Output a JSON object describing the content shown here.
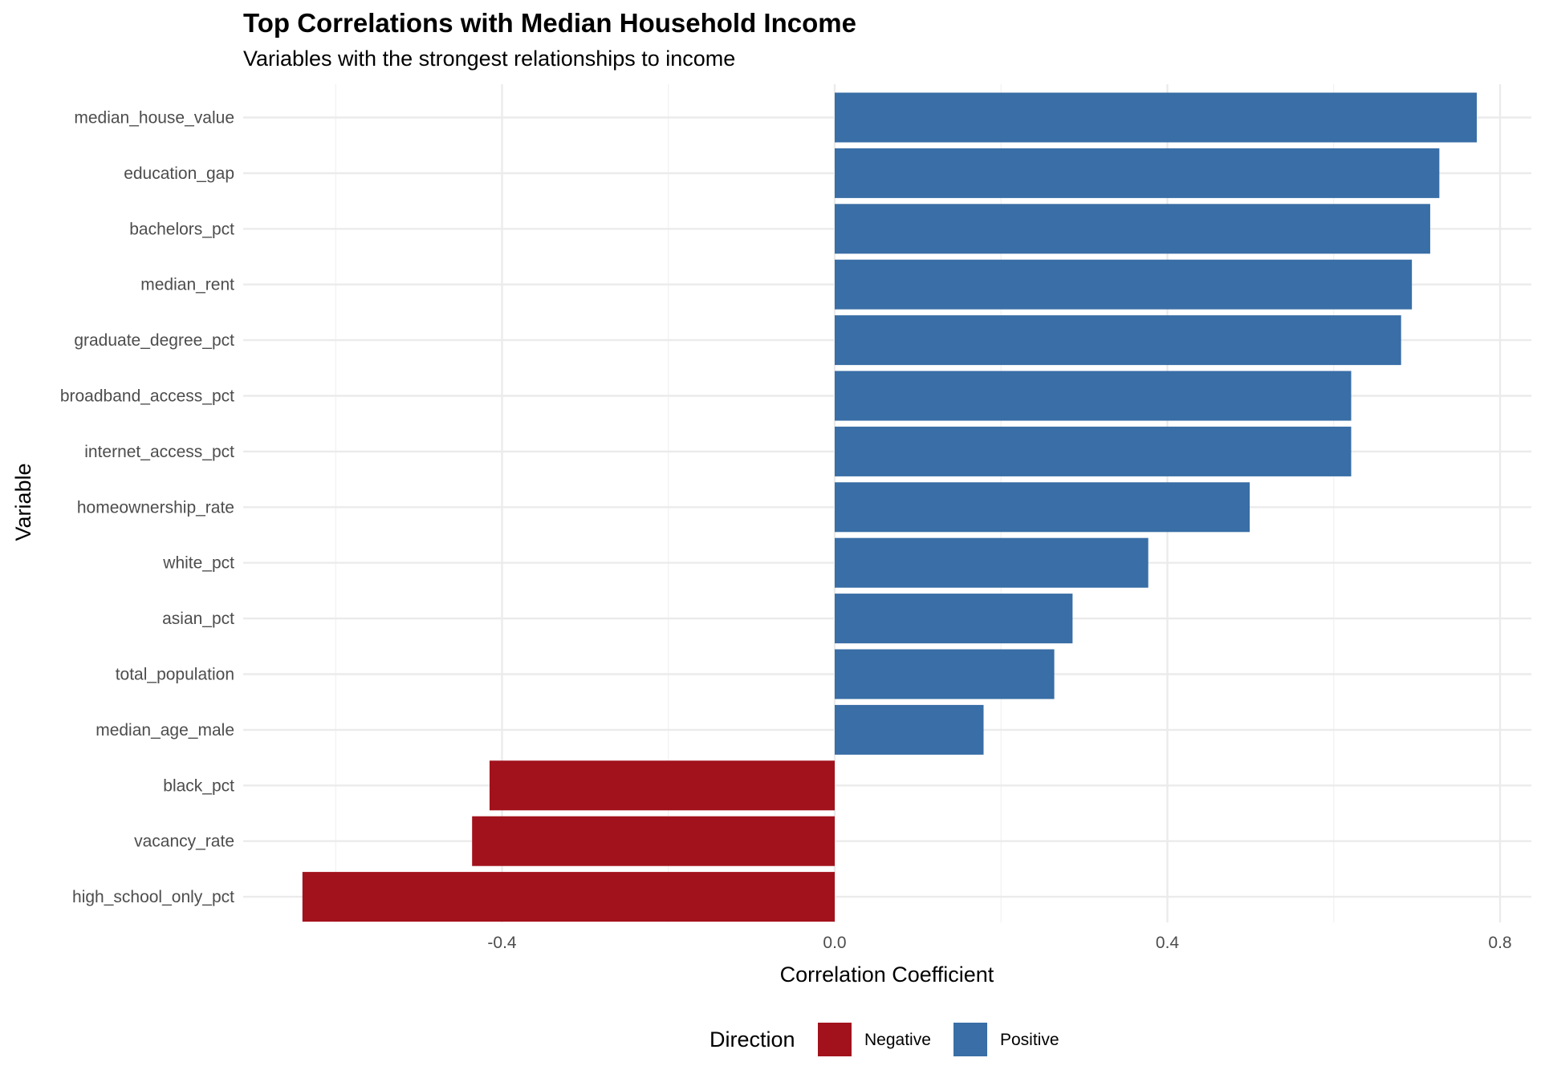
{
  "chart_data": {
    "type": "bar",
    "orientation": "horizontal",
    "title": "Top Correlations with Median Household Income",
    "subtitle": "Variables with the strongest relationships to income",
    "xlabel": "Correlation Coefficient",
    "ylabel": "Variable",
    "xlim": [
      -0.65,
      0.84
    ],
    "xticks": [
      -0.4,
      0.0,
      0.4,
      0.8
    ],
    "xtick_labels": [
      "-0.4",
      "0.0",
      "0.4",
      "0.8"
    ],
    "grid": true,
    "legend": {
      "title": "Direction",
      "position": "bottom",
      "entries": [
        {
          "label": "Negative",
          "color": "#a2121c"
        },
        {
          "label": "Positive",
          "color": "#396ea6"
        }
      ]
    },
    "categories": [
      "median_house_value",
      "education_gap",
      "bachelors_pct",
      "median_rent",
      "graduate_degree_pct",
      "broadband_access_pct",
      "internet_access_pct",
      "homeownership_rate",
      "white_pct",
      "asian_pct",
      "total_population",
      "median_age_male",
      "black_pct",
      "vacancy_rate",
      "high_school_only_pct"
    ],
    "values": [
      0.772,
      0.727,
      0.716,
      0.694,
      0.681,
      0.621,
      0.621,
      0.499,
      0.377,
      0.286,
      0.264,
      0.179,
      -0.415,
      -0.436,
      -0.64
    ],
    "directions": [
      "Positive",
      "Positive",
      "Positive",
      "Positive",
      "Positive",
      "Positive",
      "Positive",
      "Positive",
      "Positive",
      "Positive",
      "Positive",
      "Positive",
      "Negative",
      "Negative",
      "Negative"
    ]
  }
}
